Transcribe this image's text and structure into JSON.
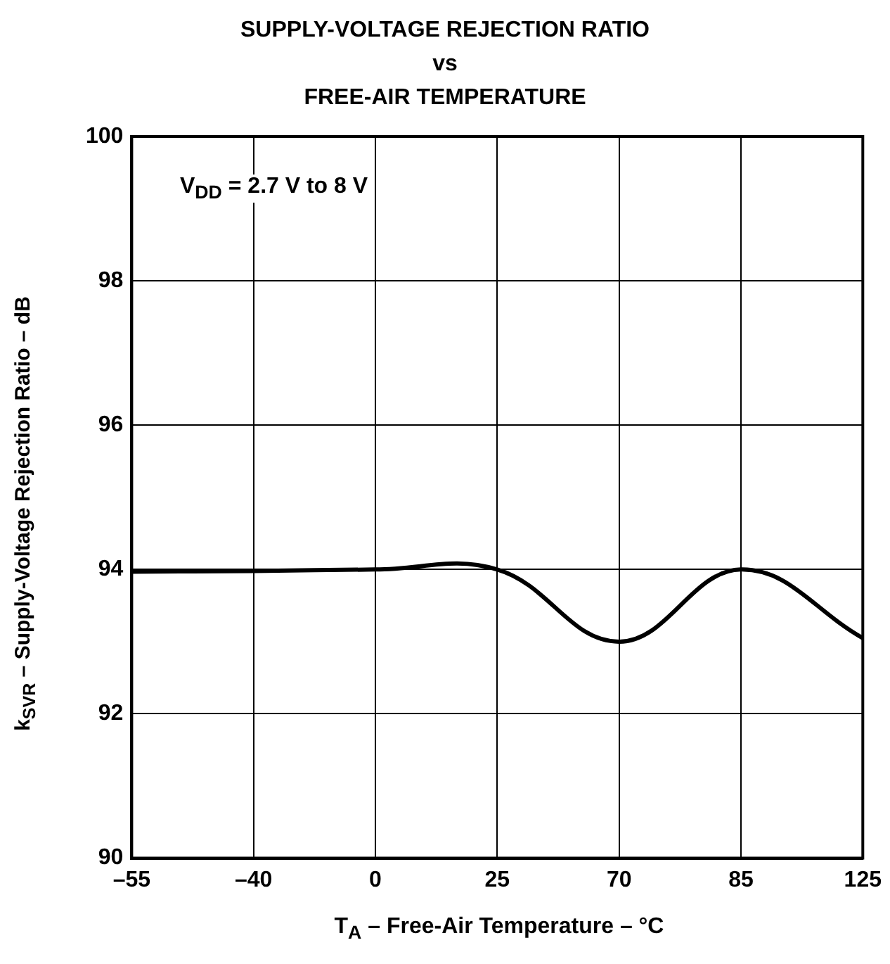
{
  "chart_data": {
    "type": "line",
    "title": "SUPPLY-VOLTAGE REJECTION RATIO\nvs\nFREE-AIR TEMPERATURE",
    "xlabel": "T$_{A}$ – Free-Air Temperature – °C",
    "ylabel": "k$_{SVR}$ – Supply-Voltage Rejection Ratio – dB",
    "annotations": [
      "V$_{DD}$ = 2.7 V to 8 V"
    ],
    "categories": [
      "–55",
      "–40",
      "0",
      "25",
      "70",
      "85",
      "125"
    ],
    "series": [
      {
        "color": "#000000",
        "values": [
          93.97,
          93.98,
          94.0,
          94.0,
          93.0,
          94.0,
          93.05
        ]
      }
    ],
    "ylim": [
      90,
      100
    ],
    "yticks": [
      90,
      92,
      94,
      96,
      98,
      100
    ],
    "grid": true,
    "legend": false,
    "marker": "none",
    "line_style": "solid"
  }
}
